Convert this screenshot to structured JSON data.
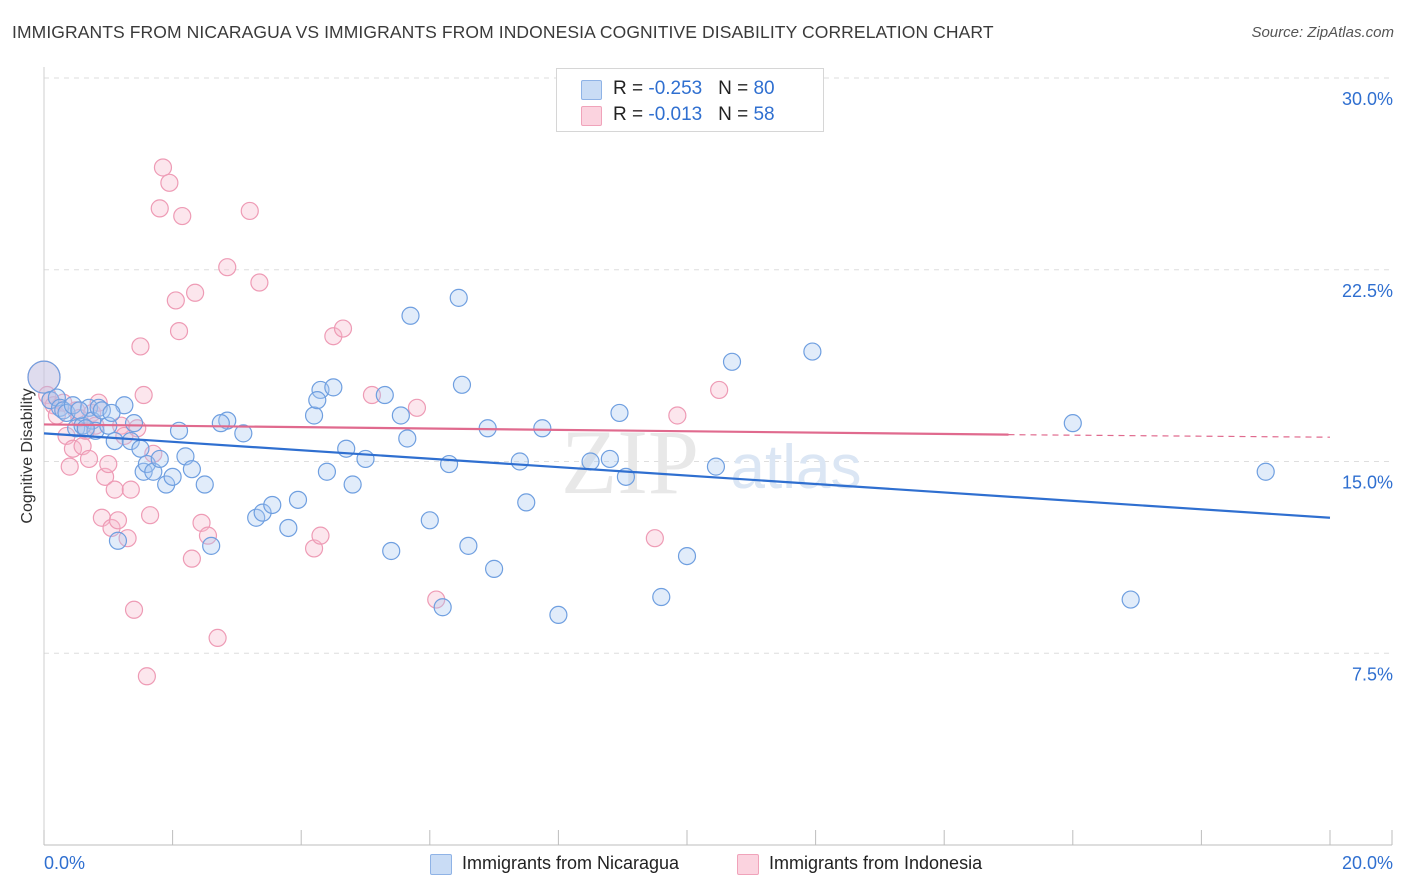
{
  "header": {
    "title": "IMMIGRANTS FROM NICARAGUA VS IMMIGRANTS FROM INDONESIA COGNITIVE DISABILITY CORRELATION CHART",
    "source": "Source: ZipAtlas.com"
  },
  "watermark": {
    "zip": "ZIP",
    "atlas": "atlas"
  },
  "legend": {
    "rows": [
      {
        "r_label": "R = ",
        "r_value": "-0.253",
        "n_label": "N = ",
        "n_value": "80",
        "color": "#a8c8f0"
      },
      {
        "r_label": "R = ",
        "r_value": "-0.013",
        "n_label": "N = ",
        "n_value": "58",
        "color": "#f6b8cb"
      }
    ]
  },
  "bottom_legend": {
    "nicaragua": "Immigrants from Nicaragua",
    "indonesia": "Immigrants from Indonesia"
  },
  "chart_data": {
    "type": "scatter",
    "ylabel": "Cognitive Disability",
    "xlabel": "",
    "xlim": [
      0,
      20
    ],
    "ylim": [
      0,
      30
    ],
    "x_ticks": [
      "0.0%",
      "20.0%"
    ],
    "y_ticks": [
      {
        "value": 7.5,
        "label": "7.5%"
      },
      {
        "value": 15,
        "label": "15.0%"
      },
      {
        "value": 22.5,
        "label": "22.5%"
      },
      {
        "value": 30,
        "label": "30.0%"
      }
    ],
    "grid": "horizontal dashed",
    "legend_position": "top-center",
    "colors": {
      "nicaragua": "#2f6fd0",
      "indonesia": "#e06a8e"
    },
    "series": [
      {
        "name": "Immigrants from Nicaragua",
        "trend": {
          "x": [
            0,
            20
          ],
          "y": [
            16.1,
            12.8
          ]
        },
        "points": [
          [
            0.0,
            18.3
          ],
          [
            0.1,
            17.4
          ],
          [
            0.2,
            17.5
          ],
          [
            0.25,
            17.1
          ],
          [
            0.3,
            17.0
          ],
          [
            0.35,
            16.9
          ],
          [
            0.45,
            17.2
          ],
          [
            0.5,
            16.3
          ],
          [
            0.6,
            16.4
          ],
          [
            0.7,
            17.1
          ],
          [
            0.75,
            16.6
          ],
          [
            0.8,
            16.2
          ],
          [
            0.85,
            17.1
          ],
          [
            0.9,
            17.0
          ],
          [
            1.0,
            16.4
          ],
          [
            1.1,
            15.8
          ],
          [
            1.15,
            11.9
          ],
          [
            1.25,
            17.2
          ],
          [
            1.35,
            15.8
          ],
          [
            1.4,
            16.5
          ],
          [
            1.5,
            15.5
          ],
          [
            1.55,
            14.6
          ],
          [
            1.6,
            14.9
          ],
          [
            1.7,
            14.6
          ],
          [
            1.8,
            15.1
          ],
          [
            1.9,
            14.1
          ],
          [
            2.0,
            14.4
          ],
          [
            2.1,
            16.2
          ],
          [
            2.2,
            15.2
          ],
          [
            2.3,
            14.7
          ],
          [
            2.5,
            14.1
          ],
          [
            2.6,
            11.7
          ],
          [
            2.85,
            16.6
          ],
          [
            3.1,
            16.1
          ],
          [
            3.3,
            12.8
          ],
          [
            3.4,
            13.0
          ],
          [
            3.55,
            13.3
          ],
          [
            3.8,
            12.4
          ],
          [
            3.95,
            13.5
          ],
          [
            4.2,
            16.8
          ],
          [
            4.3,
            17.8
          ],
          [
            4.4,
            14.6
          ],
          [
            4.5,
            17.9
          ],
          [
            4.7,
            15.5
          ],
          [
            4.8,
            14.1
          ],
          [
            5.0,
            15.1
          ],
          [
            5.3,
            17.6
          ],
          [
            5.4,
            11.5
          ],
          [
            5.55,
            16.8
          ],
          [
            5.65,
            15.9
          ],
          [
            5.7,
            20.7
          ],
          [
            6.0,
            12.7
          ],
          [
            6.2,
            9.3
          ],
          [
            6.3,
            14.9
          ],
          [
            6.45,
            21.4
          ],
          [
            6.5,
            18.0
          ],
          [
            6.6,
            11.7
          ],
          [
            6.9,
            16.3
          ],
          [
            7.0,
            10.8
          ],
          [
            7.4,
            15.0
          ],
          [
            7.5,
            13.4
          ],
          [
            7.75,
            16.3
          ],
          [
            8.0,
            9.0
          ],
          [
            8.5,
            15.0
          ],
          [
            8.8,
            15.1
          ],
          [
            8.95,
            16.9
          ],
          [
            9.05,
            14.4
          ],
          [
            9.6,
            9.7
          ],
          [
            10.0,
            11.3
          ],
          [
            10.45,
            14.8
          ],
          [
            10.7,
            18.9
          ],
          [
            11.95,
            19.3
          ],
          [
            16.0,
            16.5
          ],
          [
            16.9,
            9.6
          ],
          [
            19.0,
            14.6
          ],
          [
            1.05,
            16.9
          ],
          [
            0.55,
            17.0
          ],
          [
            0.65,
            16.3
          ],
          [
            2.75,
            16.5
          ],
          [
            4.25,
            17.4
          ]
        ]
      },
      {
        "name": "Immigrants from Indonesia",
        "trend": {
          "x": [
            0,
            15
          ],
          "y": [
            16.45,
            16.05
          ]
        },
        "dashed_extension": {
          "x": [
            15,
            20
          ],
          "y": [
            16.05,
            15.95
          ]
        },
        "points": [
          [
            0.0,
            18.3
          ],
          [
            0.05,
            17.6
          ],
          [
            0.1,
            17.4
          ],
          [
            0.15,
            17.2
          ],
          [
            0.2,
            16.8
          ],
          [
            0.3,
            17.3
          ],
          [
            0.35,
            16.0
          ],
          [
            0.4,
            14.8
          ],
          [
            0.45,
            15.5
          ],
          [
            0.5,
            17.0
          ],
          [
            0.55,
            16.7
          ],
          [
            0.6,
            15.6
          ],
          [
            0.65,
            16.2
          ],
          [
            0.7,
            15.1
          ],
          [
            0.75,
            16.9
          ],
          [
            0.8,
            16.4
          ],
          [
            0.85,
            17.3
          ],
          [
            0.9,
            12.8
          ],
          [
            0.95,
            14.4
          ],
          [
            1.0,
            14.9
          ],
          [
            1.05,
            12.4
          ],
          [
            1.1,
            13.9
          ],
          [
            1.15,
            12.7
          ],
          [
            1.2,
            16.4
          ],
          [
            1.25,
            16.0
          ],
          [
            1.3,
            12.0
          ],
          [
            1.35,
            13.9
          ],
          [
            1.4,
            9.2
          ],
          [
            1.45,
            16.3
          ],
          [
            1.5,
            19.5
          ],
          [
            1.55,
            17.6
          ],
          [
            1.6,
            6.6
          ],
          [
            1.65,
            12.9
          ],
          [
            1.7,
            15.3
          ],
          [
            1.8,
            24.9
          ],
          [
            1.85,
            26.5
          ],
          [
            1.95,
            25.9
          ],
          [
            2.05,
            21.3
          ],
          [
            2.1,
            20.1
          ],
          [
            2.15,
            24.6
          ],
          [
            2.3,
            11.2
          ],
          [
            2.35,
            21.6
          ],
          [
            2.45,
            12.6
          ],
          [
            2.55,
            12.1
          ],
          [
            2.7,
            8.1
          ],
          [
            2.85,
            22.6
          ],
          [
            3.2,
            24.8
          ],
          [
            3.35,
            22.0
          ],
          [
            4.2,
            11.6
          ],
          [
            4.3,
            12.1
          ],
          [
            4.5,
            19.9
          ],
          [
            4.65,
            20.2
          ],
          [
            5.1,
            17.6
          ],
          [
            5.8,
            17.1
          ],
          [
            6.1,
            9.6
          ],
          [
            9.5,
            12.0
          ],
          [
            9.85,
            16.8
          ],
          [
            10.5,
            17.8
          ]
        ]
      }
    ]
  }
}
